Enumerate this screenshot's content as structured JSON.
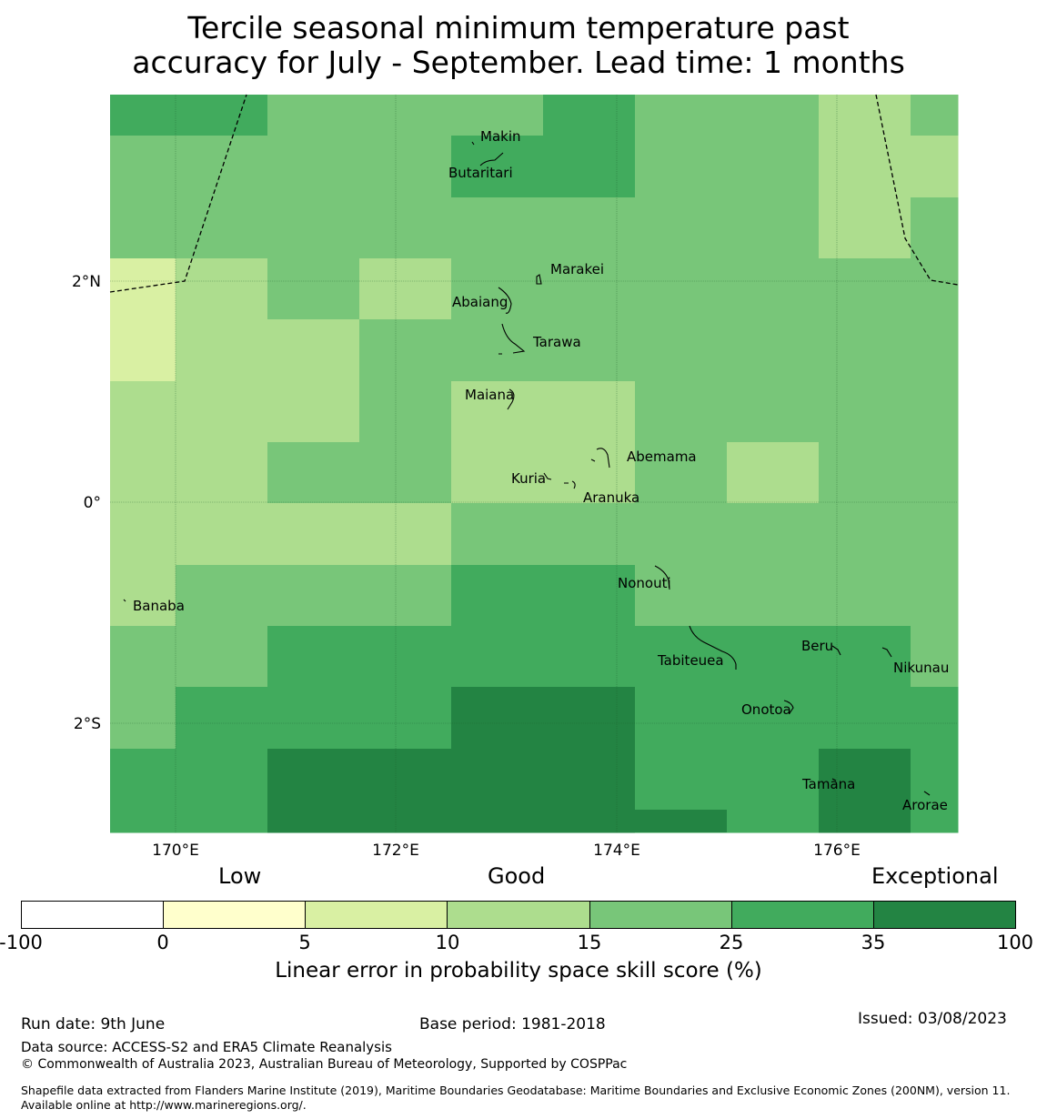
{
  "title": {
    "line1": "Tercile seasonal minimum temperature past",
    "line2": "accuracy for July - September. Lead time: 1 months"
  },
  "map": {
    "lon_labels": [
      "170°E",
      "172°E",
      "174°E",
      "176°E"
    ],
    "lat_labels": [
      "2°N",
      "0°",
      "2°S"
    ],
    "places": [
      "Makin",
      "Butaritari",
      "Marakei",
      "Abaiang",
      "Tarawa",
      "Maiana",
      "Abemama",
      "Kuria",
      "Aranuka",
      "Nonouti",
      "Banaba",
      "Beru",
      "Tabiteuea",
      "Nikunau",
      "Onotoa",
      "Tamana",
      "Arorae"
    ],
    "skill_grid": [
      [
        5,
        5,
        4,
        4,
        4,
        5,
        4,
        4,
        3,
        4
      ],
      [
        4,
        4,
        4,
        4,
        5,
        5,
        4,
        4,
        3,
        3
      ],
      [
        4,
        4,
        4,
        4,
        4,
        4,
        4,
        4,
        3,
        4
      ],
      [
        2,
        3,
        4,
        3,
        4,
        4,
        4,
        4,
        4,
        4
      ],
      [
        2,
        3,
        3,
        4,
        4,
        4,
        4,
        4,
        4,
        4
      ],
      [
        3,
        3,
        3,
        4,
        3,
        3,
        4,
        4,
        4,
        4
      ],
      [
        3,
        3,
        4,
        4,
        3,
        3,
        4,
        3,
        4,
        4
      ],
      [
        3,
        3,
        3,
        3,
        4,
        4,
        4,
        4,
        4,
        4
      ],
      [
        3,
        4,
        4,
        4,
        5,
        5,
        4,
        4,
        4,
        4
      ],
      [
        4,
        4,
        5,
        5,
        5,
        5,
        5,
        5,
        5,
        4
      ],
      [
        4,
        5,
        5,
        5,
        6,
        6,
        5,
        5,
        5,
        5
      ],
      [
        5,
        5,
        6,
        6,
        6,
        6,
        5,
        5,
        6,
        5
      ]
    ]
  },
  "legend": {
    "categories": [
      "Low",
      "Good",
      "Exceptional"
    ],
    "ticks": [
      "-100",
      "0",
      "5",
      "10",
      "15",
      "25",
      "35",
      "100"
    ],
    "colors": [
      "#ffffff",
      "#ffffcc",
      "#d9f0a3",
      "#addd8e",
      "#78c679",
      "#41ab5d",
      "#238443"
    ],
    "label": "Linear error in probability space skill score (%)"
  },
  "footer": {
    "run_date": "Run date: 9th June",
    "base_period": "Base period: 1981-2018",
    "issued": "Issued: 03/08/2023",
    "data_source": "Data source: ACCESS-S2 and ERA5 Climate Reanalysis",
    "copyright": "© Commonwealth of Australia 2023, Australian Bureau of Meteorology, Supported by COSPPac",
    "shapefile": "Shapefile data extracted from Flanders Marine Institute (2019), Maritime Boundaries Geodatabase: Maritime Boundaries and Exclusive Economic Zones (200NM), version 11. Available online at http://www.marineregions.org/."
  }
}
